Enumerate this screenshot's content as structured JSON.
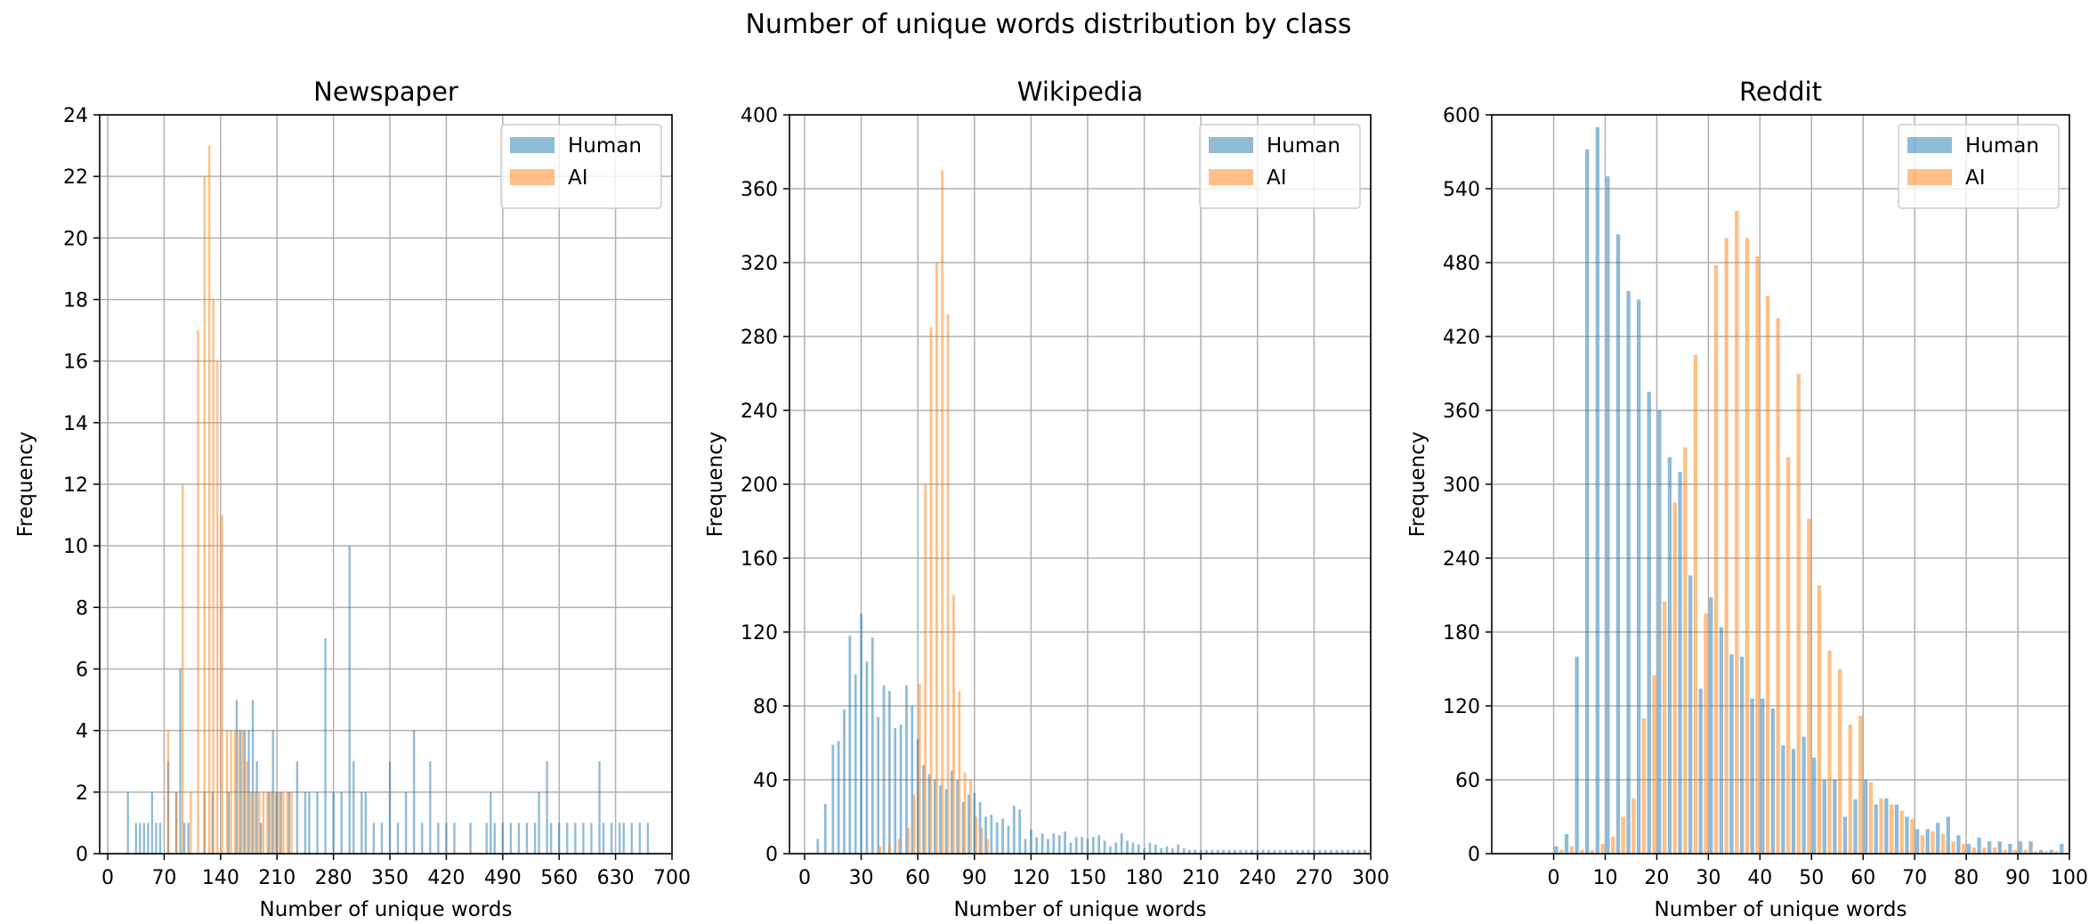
{
  "figure_title": "Number of unique words distribution by class",
  "colors": {
    "human": "#1f77b4",
    "ai": "#ff7f0e",
    "grid": "#b0b0b0",
    "bar_alpha": 0.5
  },
  "legend_placement": "top-right",
  "grid": true,
  "chart_data": [
    {
      "type": "bar",
      "title": "Newspaper",
      "xlabel": "Number of unique words",
      "ylabel": "Frequency",
      "xlim": [
        -10,
        700
      ],
      "ylim": [
        0,
        24
      ],
      "xticks": [
        0,
        70,
        140,
        210,
        280,
        350,
        420,
        490,
        560,
        630,
        700
      ],
      "yticks": [
        0,
        2,
        4,
        6,
        8,
        10,
        12,
        14,
        16,
        18,
        20,
        22,
        24
      ],
      "bar_width": 2.6,
      "series": [
        {
          "name": "Human",
          "color_key": "human",
          "x": [
            25,
            35,
            40,
            45,
            50,
            55,
            60,
            65,
            75,
            85,
            90,
            95,
            100,
            120,
            130,
            150,
            160,
            165,
            170,
            175,
            180,
            185,
            190,
            200,
            205,
            210,
            215,
            225,
            235,
            245,
            250,
            260,
            270,
            280,
            290,
            300,
            305,
            315,
            320,
            330,
            340,
            350,
            360,
            370,
            380,
            390,
            400,
            410,
            420,
            430,
            450,
            470,
            475,
            480,
            490,
            500,
            510,
            520,
            530,
            535,
            545,
            550,
            560,
            570,
            580,
            590,
            600,
            610,
            615,
            625,
            635,
            640,
            650,
            660,
            670
          ],
          "values": [
            2,
            1,
            1,
            1,
            1,
            2,
            1,
            1,
            3,
            2,
            6,
            1,
            1,
            2,
            2,
            2,
            5,
            4,
            4,
            4,
            5,
            3,
            1,
            2,
            4,
            2,
            2,
            2,
            3,
            2,
            2,
            2,
            7,
            2,
            2,
            10,
            3,
            2,
            2,
            1,
            1,
            3,
            1,
            2,
            4,
            1,
            3,
            1,
            1,
            1,
            1,
            1,
            2,
            1,
            1,
            1,
            1,
            1,
            1,
            2,
            3,
            1,
            1,
            1,
            1,
            1,
            1,
            3,
            1,
            1,
            1,
            1,
            1,
            1,
            1
          ]
        },
        {
          "name": "AI",
          "color_key": "ai",
          "x": [
            75,
            85,
            93,
            103,
            112,
            120,
            126,
            131,
            136,
            142,
            148,
            153,
            158,
            163,
            168,
            173,
            178,
            183,
            188,
            193,
            198,
            203,
            208,
            213,
            218,
            223,
            228
          ],
          "values": [
            4,
            2,
            12,
            2,
            17,
            22,
            23,
            18,
            16,
            11,
            4,
            4,
            4,
            4,
            4,
            3,
            2,
            2,
            2,
            2,
            2,
            2,
            2,
            2,
            2,
            2,
            2
          ]
        }
      ]
    },
    {
      "type": "bar",
      "title": "Wikipedia",
      "xlabel": "Number of unique words",
      "ylabel": "Frequency",
      "xlim": [
        -8,
        300
      ],
      "ylim": [
        0,
        400
      ],
      "xticks": [
        0,
        30,
        60,
        90,
        120,
        150,
        180,
        210,
        240,
        270,
        300
      ],
      "yticks": [
        0,
        40,
        80,
        120,
        160,
        200,
        240,
        280,
        320,
        360,
        400
      ],
      "bar_width": 1.3,
      "series": [
        {
          "name": "Human",
          "color_key": "human",
          "x": [
            7,
            11,
            15,
            18,
            21,
            24,
            27,
            30,
            33,
            36,
            39,
            42,
            45,
            48,
            51,
            54,
            57,
            60,
            63,
            66,
            69,
            72,
            75,
            78,
            81,
            84,
            87,
            90,
            93,
            96,
            99,
            102,
            105,
            108,
            111,
            114,
            117,
            120,
            123,
            126,
            129,
            132,
            135,
            138,
            141,
            144,
            147,
            150,
            153,
            156,
            159,
            162,
            165,
            168,
            171,
            174,
            177,
            180,
            183,
            186,
            189,
            192,
            195,
            198,
            201,
            204,
            207,
            210,
            213,
            216,
            219,
            222,
            225,
            228,
            231,
            234,
            237,
            240,
            243,
            246,
            249,
            252,
            255,
            258,
            261,
            264,
            267,
            270,
            273,
            276,
            279,
            282,
            285,
            288,
            291,
            294,
            297
          ],
          "values": [
            8,
            27,
            59,
            61,
            78,
            118,
            97,
            130,
            104,
            117,
            74,
            91,
            88,
            68,
            70,
            91,
            80,
            62,
            48,
            43,
            40,
            37,
            35,
            45,
            40,
            28,
            32,
            33,
            28,
            20,
            21,
            17,
            19,
            15,
            26,
            24,
            8,
            13,
            9,
            11,
            8,
            11,
            10,
            12,
            6,
            9,
            9,
            8,
            9,
            10,
            7,
            4,
            6,
            11,
            7,
            6,
            5,
            3,
            6,
            5,
            3,
            4,
            3,
            5,
            3,
            2,
            2,
            2,
            2,
            2,
            2,
            2,
            2,
            2,
            2,
            2,
            2,
            2,
            2,
            2,
            2,
            2,
            2,
            2,
            2,
            2,
            2,
            2,
            2,
            2,
            2,
            2,
            2,
            2,
            2,
            2,
            2
          ]
        },
        {
          "name": "AI",
          "color_key": "ai",
          "x": [
            40,
            45,
            50,
            55,
            58,
            61,
            64,
            67,
            70,
            73,
            76,
            79,
            82,
            85,
            88,
            91,
            94,
            97
          ],
          "values": [
            4,
            5,
            8,
            14,
            32,
            92,
            200,
            285,
            320,
            370,
            292,
            140,
            88,
            44,
            40,
            20,
            14,
            8
          ]
        }
      ]
    },
    {
      "type": "bar",
      "title": "Reddit",
      "xlabel": "Number of unique words",
      "ylabel": "Frequency",
      "xlim": [
        -12,
        100
      ],
      "ylim": [
        0,
        600
      ],
      "xticks": [
        0,
        10,
        20,
        30,
        40,
        50,
        60,
        70,
        80,
        90,
        100
      ],
      "yticks": [
        0,
        60,
        120,
        180,
        240,
        300,
        360,
        420,
        480,
        540,
        600
      ],
      "bar_width": 0.75,
      "series": [
        {
          "name": "Human",
          "color_key": "human",
          "x": [
            0.5,
            2.5,
            4.5,
            6.5,
            8.5,
            10.5,
            12.5,
            14.5,
            16.5,
            18.5,
            20.5,
            22.5,
            24.5,
            26.5,
            28.5,
            30.5,
            32.5,
            34.5,
            36.5,
            38.5,
            40.5,
            42.5,
            44.5,
            46.5,
            48.5,
            50.5,
            52.5,
            54.5,
            56.5,
            58.5,
            60.5,
            62.5,
            64.5,
            66.5,
            68.5,
            70.5,
            72.5,
            74.5,
            76.5,
            78.5,
            80.5,
            82.5,
            84.5,
            86.5,
            88.5,
            90.5,
            92.5,
            94.5,
            96.5,
            98.5
          ],
          "values": [
            6,
            16,
            160,
            572,
            590,
            550,
            503,
            457,
            450,
            375,
            360,
            322,
            310,
            226,
            134,
            208,
            184,
            162,
            160,
            126,
            126,
            118,
            88,
            85,
            95,
            78,
            60,
            60,
            30,
            44,
            60,
            40,
            45,
            40,
            30,
            20,
            20,
            25,
            30,
            15,
            8,
            13,
            10,
            10,
            8,
            10,
            10,
            3,
            3,
            8
          ]
        },
        {
          "name": "AI",
          "color_key": "ai",
          "x": [
            1.5,
            3.5,
            5.5,
            7.5,
            9.5,
            11.5,
            13.5,
            15.5,
            17.5,
            19.5,
            21.5,
            23.5,
            25.5,
            27.5,
            29.5,
            31.5,
            33.5,
            35.5,
            37.5,
            39.5,
            41.5,
            43.5,
            45.5,
            47.5,
            49.5,
            51.5,
            53.5,
            55.5,
            57.5,
            59.5,
            61.5,
            63.5,
            65.5,
            67.5,
            69.5,
            71.5,
            73.5,
            75.5,
            77.5,
            79.5,
            81.5,
            83.5,
            85.5,
            87.5,
            89.5,
            91.5,
            93.5,
            95.5,
            97.5
          ],
          "values": [
            3,
            6,
            3,
            3,
            8,
            14,
            30,
            45,
            110,
            145,
            205,
            285,
            330,
            405,
            195,
            478,
            500,
            522,
            500,
            485,
            453,
            435,
            322,
            390,
            272,
            218,
            165,
            150,
            105,
            112,
            58,
            45,
            40,
            35,
            28,
            15,
            18,
            16,
            10,
            8,
            5,
            5,
            5,
            3,
            3,
            3,
            2,
            2,
            2
          ]
        }
      ]
    }
  ]
}
